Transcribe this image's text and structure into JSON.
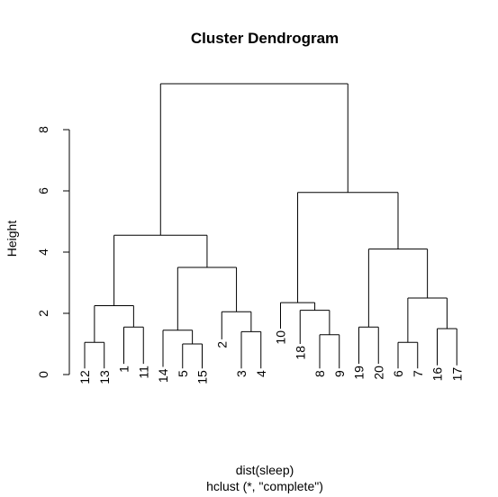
{
  "chart_data": {
    "type": "dendrogram",
    "title": "Cluster Dendrogram",
    "ylabel": "Height",
    "xlabel": "dist(sleep)",
    "sub": "hclust (*, \"complete\")",
    "ylim": [
      0,
      9.8
    ],
    "yticks": [
      0,
      2,
      4,
      6,
      8
    ],
    "leaf_order": [
      "12",
      "13",
      "1",
      "11",
      "14",
      "5",
      "15",
      "2",
      "3",
      "4",
      "10",
      "18",
      "8",
      "9",
      "19",
      "20",
      "6",
      "7",
      "16",
      "17"
    ],
    "merges": [
      {
        "members": [
          "12",
          "13"
        ],
        "height": 1.05
      },
      {
        "members": [
          "1",
          "11"
        ],
        "height": 1.55
      },
      {
        "members": [
          "12",
          "13",
          "1",
          "11"
        ],
        "height": 2.25
      },
      {
        "members": [
          "5",
          "15"
        ],
        "height": 1.0
      },
      {
        "members": [
          "14",
          "5",
          "15"
        ],
        "height": 1.45
      },
      {
        "members": [
          "3",
          "4"
        ],
        "height": 1.4
      },
      {
        "members": [
          "2",
          "3",
          "4"
        ],
        "height": 2.05
      },
      {
        "members": [
          "14",
          "5",
          "15",
          "2",
          "3",
          "4"
        ],
        "height": 3.5
      },
      {
        "members": [
          "12",
          "13",
          "1",
          "11",
          "14",
          "5",
          "15",
          "2",
          "3",
          "4"
        ],
        "height": 4.55
      },
      {
        "members": [
          "8",
          "9"
        ],
        "height": 1.3
      },
      {
        "members": [
          "18",
          "8",
          "9"
        ],
        "height": 2.1
      },
      {
        "members": [
          "10",
          "18",
          "8",
          "9"
        ],
        "height": 2.35
      },
      {
        "members": [
          "19",
          "20"
        ],
        "height": 1.55
      },
      {
        "members": [
          "6",
          "7"
        ],
        "height": 1.05
      },
      {
        "members": [
          "16",
          "17"
        ],
        "height": 1.5
      },
      {
        "members": [
          "6",
          "7",
          "16",
          "17"
        ],
        "height": 2.5
      },
      {
        "members": [
          "19",
          "20",
          "6",
          "7",
          "16",
          "17"
        ],
        "height": 4.1
      },
      {
        "members": [
          "10",
          "18",
          "8",
          "9",
          "19",
          "20",
          "6",
          "7",
          "16",
          "17"
        ],
        "height": 5.95
      },
      {
        "members": [
          "12",
          "13",
          "1",
          "11",
          "14",
          "5",
          "15",
          "2",
          "3",
          "4",
          "10",
          "18",
          "8",
          "9",
          "19",
          "20",
          "6",
          "7",
          "16",
          "17"
        ],
        "height": 9.5
      }
    ],
    "leaf_label_top": [
      {
        "label": "12",
        "height": 0.2
      },
      {
        "label": "13",
        "height": 0.2
      },
      {
        "label": "1",
        "height": 0.35
      },
      {
        "label": "11",
        "height": 0.35
      },
      {
        "label": "14",
        "height": 0.25
      },
      {
        "label": "5",
        "height": 0.2
      },
      {
        "label": "15",
        "height": 0.2
      },
      {
        "label": "2",
        "height": 1.15
      },
      {
        "label": "3",
        "height": 0.2
      },
      {
        "label": "4",
        "height": 0.2
      },
      {
        "label": "10",
        "height": 1.5
      },
      {
        "label": "18",
        "height": 1.0
      },
      {
        "label": "8",
        "height": 0.2
      },
      {
        "label": "9",
        "height": 0.2
      },
      {
        "label": "19",
        "height": 0.35
      },
      {
        "label": "20",
        "height": 0.35
      },
      {
        "label": "6",
        "height": 0.2
      },
      {
        "label": "7",
        "height": 0.2
      },
      {
        "label": "16",
        "height": 0.3
      },
      {
        "label": "17",
        "height": 0.3
      }
    ]
  }
}
